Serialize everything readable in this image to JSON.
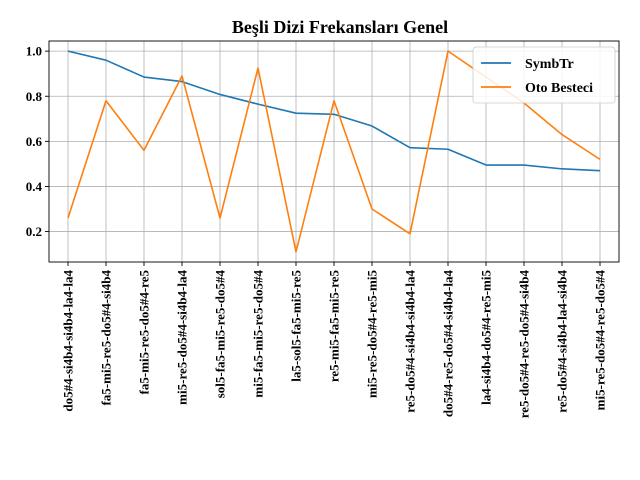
{
  "chart_data": {
    "type": "line",
    "title": "Beşli Dizi Frekansları Genel",
    "xlabel": "",
    "ylabel": "",
    "categories": [
      "do5#4-si4b4-si4b4-la4-la4",
      "fa5-mi5-re5-do5#4-si4b4",
      "fa5-mi5-re5-do5#4-re5",
      "mi5-re5-do5#4-si4b4-la4",
      "sol5-fa5-mi5-re5-do5#4",
      "mi5-fa5-mi5-re5-do5#4",
      "la5-sol5-fa5-mi5-re5",
      "re5-mi5-fa5-mi5-re5",
      "mi5-re5-do5#4-re5-mi5",
      "re5-do5#4-si4b4-si4b4-la4",
      "do5#4-re5-do5#4-si4b4-la4",
      "la4-si4b4-do5#4-re5-mi5",
      "re5-do5#4-re5-do5#4-si4b4",
      "re5-do5#4-si4b4-la4-si4b4",
      "mi5-re5-do5#4-re5-do5#4"
    ],
    "series": [
      {
        "name": "SymbTr",
        "color": "#1f77b4",
        "values": [
          1.0,
          0.96,
          0.885,
          0.865,
          0.808,
          0.765,
          0.725,
          0.72,
          0.668,
          0.572,
          0.565,
          0.495,
          0.495,
          0.478,
          0.47
        ]
      },
      {
        "name": "Oto Besteci",
        "color": "#ff7f0e",
        "values": [
          0.26,
          0.78,
          0.56,
          0.89,
          0.26,
          0.925,
          0.11,
          0.78,
          0.3,
          0.19,
          1.0,
          0.885,
          0.77,
          0.63,
          0.52
        ]
      }
    ],
    "yticks": [
      "0.2",
      "0.4",
      "0.6",
      "0.8",
      "1.0"
    ],
    "ylim": [
      0.065,
      1.045
    ],
    "grid": true,
    "legend_position": "top-right"
  }
}
